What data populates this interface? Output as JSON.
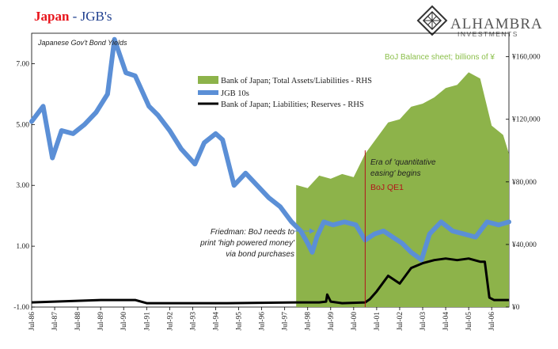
{
  "header": {
    "title_main": "Japan",
    "title_sep": " - ",
    "title_sub": "JGB's",
    "brand_name": "ALHAMBRA",
    "brand_sub": "INVESTMENTS"
  },
  "colors": {
    "green": "#8db34a",
    "blue": "#5b8fd6",
    "black": "#000000",
    "red": "#b3141b"
  },
  "chart_data": {
    "type": "line",
    "subtitle": "Japanese Gov't Bond Yields",
    "rhs_title": "BoJ Balance sheet; billions of ¥",
    "x_tick_labels": [
      "Jul-86",
      "Jul-87",
      "Jul-88",
      "Jul-89",
      "Jul-90",
      "Jul-91",
      "Jul-92",
      "Jul-93",
      "Jul-94",
      "Jul-95",
      "Jul-96",
      "Jul-97",
      "Jul-98",
      "Jul-99",
      "Jul-00",
      "Jul-01",
      "Jul-02",
      "Jul-03",
      "Jul-04",
      "Jul-05",
      "Jul-06"
    ],
    "x_range": [
      1986.5,
      2007.25
    ],
    "left_axis": {
      "range": [
        -1.0,
        8.0
      ],
      "ticks": [
        "7.00",
        "5.00",
        "3.00",
        "1.00",
        "-1.00"
      ],
      "tick_values": [
        7,
        5,
        3,
        1,
        -1
      ]
    },
    "right_axis": {
      "range": [
        0,
        175000
      ],
      "ticks": [
        "¥160,000",
        "¥120,000",
        "¥80,000",
        "¥40,000",
        "¥0"
      ],
      "tick_values": [
        160000,
        120000,
        80000,
        40000,
        0
      ]
    },
    "series": [
      {
        "name": "Bank of Japan; Total Assets/Liabilities - RHS",
        "axis": "right",
        "style": "area",
        "x": [
          1998.0,
          1998.5,
          1999.0,
          1999.5,
          2000.0,
          2000.5,
          2001.0,
          2001.5,
          2002.0,
          2002.5,
          2003.0,
          2003.5,
          2004.0,
          2004.5,
          2005.0,
          2005.5,
          2006.0,
          2006.5,
          2007.0,
          2007.25
        ],
        "values": [
          78000,
          76000,
          84000,
          82000,
          85000,
          83000,
          98000,
          108000,
          118000,
          120000,
          128000,
          130000,
          134000,
          140000,
          142000,
          150000,
          146000,
          116000,
          110000,
          98000
        ]
      },
      {
        "name": "JGB 10s",
        "axis": "left",
        "style": "line",
        "x": [
          1986.5,
          1987.0,
          1987.4,
          1987.8,
          1988.3,
          1988.8,
          1989.3,
          1989.8,
          1990.1,
          1990.6,
          1991.0,
          1991.6,
          1992.0,
          1992.5,
          1993.0,
          1993.6,
          1994.0,
          1994.5,
          1994.8,
          1995.3,
          1995.8,
          1996.3,
          1996.8,
          1997.3,
          1997.8,
          1998.2,
          1998.5,
          1998.7,
          1998.9,
          1999.2,
          1999.6,
          2000.1,
          2000.6,
          2001.0,
          2001.4,
          2001.8,
          2002.2,
          2002.6,
          2003.0,
          2003.45,
          2003.8,
          2004.3,
          2004.8,
          2005.3,
          2005.8,
          2006.3,
          2006.8,
          2007.25
        ],
        "values": [
          5.1,
          5.6,
          3.9,
          4.8,
          4.7,
          5.0,
          5.4,
          6.0,
          7.8,
          6.7,
          6.6,
          5.6,
          5.3,
          4.8,
          4.2,
          3.7,
          4.4,
          4.7,
          4.5,
          3.0,
          3.4,
          3.0,
          2.6,
          2.3,
          1.8,
          1.5,
          1.1,
          0.8,
          1.3,
          1.8,
          1.7,
          1.8,
          1.7,
          1.2,
          1.4,
          1.5,
          1.3,
          1.1,
          0.8,
          0.55,
          1.4,
          1.8,
          1.5,
          1.4,
          1.3,
          1.8,
          1.7,
          1.8
        ]
      },
      {
        "name": "Bank of Japan; Liabilities; Reserves - RHS",
        "axis": "right",
        "style": "line",
        "x": [
          1986.5,
          1987.5,
          1988.5,
          1989.5,
          1990.0,
          1991.0,
          1991.5,
          1992.0,
          1995.0,
          1998.0,
          1999.0,
          1999.3,
          1999.35,
          1999.5,
          2000.0,
          2001.0,
          2001.2,
          2001.5,
          2002.0,
          2002.5,
          2003.0,
          2003.5,
          2004.0,
          2004.5,
          2005.0,
          2005.5,
          2006.0,
          2006.2,
          2006.4,
          2006.6,
          2007.25
        ],
        "values": [
          3000,
          3500,
          4000,
          4500,
          4500,
          4500,
          2500,
          2500,
          2500,
          3000,
          3000,
          3500,
          8000,
          3500,
          2500,
          3000,
          5000,
          10000,
          20000,
          15000,
          25000,
          28000,
          30000,
          31000,
          30000,
          31000,
          29000,
          29000,
          6000,
          4500,
          4500
        ]
      }
    ],
    "annotations": {
      "friedman": [
        "Friedman: BoJ needs to",
        "print 'high powered money'",
        "via bond purchases"
      ],
      "era": [
        "Era of 'quantitative",
        "easing' begins"
      ],
      "qe1": "BoJ QE1",
      "qe1_x": 2001.0
    }
  }
}
